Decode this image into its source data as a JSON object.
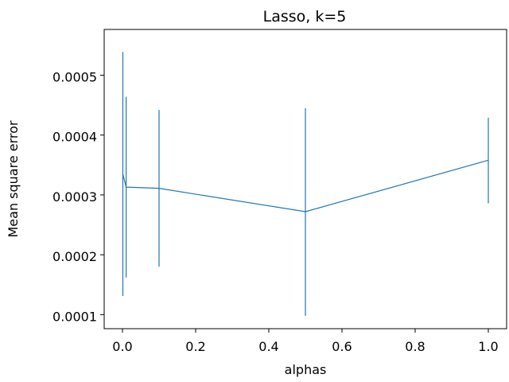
{
  "chart_data": {
    "type": "line",
    "title": "Lasso, k=5",
    "xlabel": "alphas",
    "ylabel": "Mean square error",
    "xlim": [
      -0.05,
      1.05
    ],
    "ylim": [
      7.65e-05,
      0.0005765
    ],
    "grid": false,
    "series_color": "#1f77b4",
    "x_ticks": [
      0.0,
      0.2,
      0.4,
      0.6,
      0.8,
      1.0
    ],
    "x_tick_labels": [
      "0.0",
      "0.2",
      "0.4",
      "0.6",
      "0.8",
      "1.0"
    ],
    "y_ticks": [
      0.0001,
      0.0002,
      0.0003,
      0.0004,
      0.0005
    ],
    "y_tick_labels": [
      "0.0001",
      "0.0002",
      "0.0003",
      "0.0004",
      "0.0005"
    ],
    "series": [
      {
        "x": [
          0.001,
          0.01,
          0.1,
          0.5,
          1.0
        ],
        "y": [
          0.000335,
          0.000313,
          0.000311,
          0.000272,
          0.000358
        ],
        "yerr_low": [
          0.000131,
          0.000162,
          0.00018,
          9.8e-05,
          0.000286
        ],
        "yerr_high": [
          0.000539,
          0.000464,
          0.000442,
          0.000445,
          0.000429
        ]
      }
    ]
  }
}
